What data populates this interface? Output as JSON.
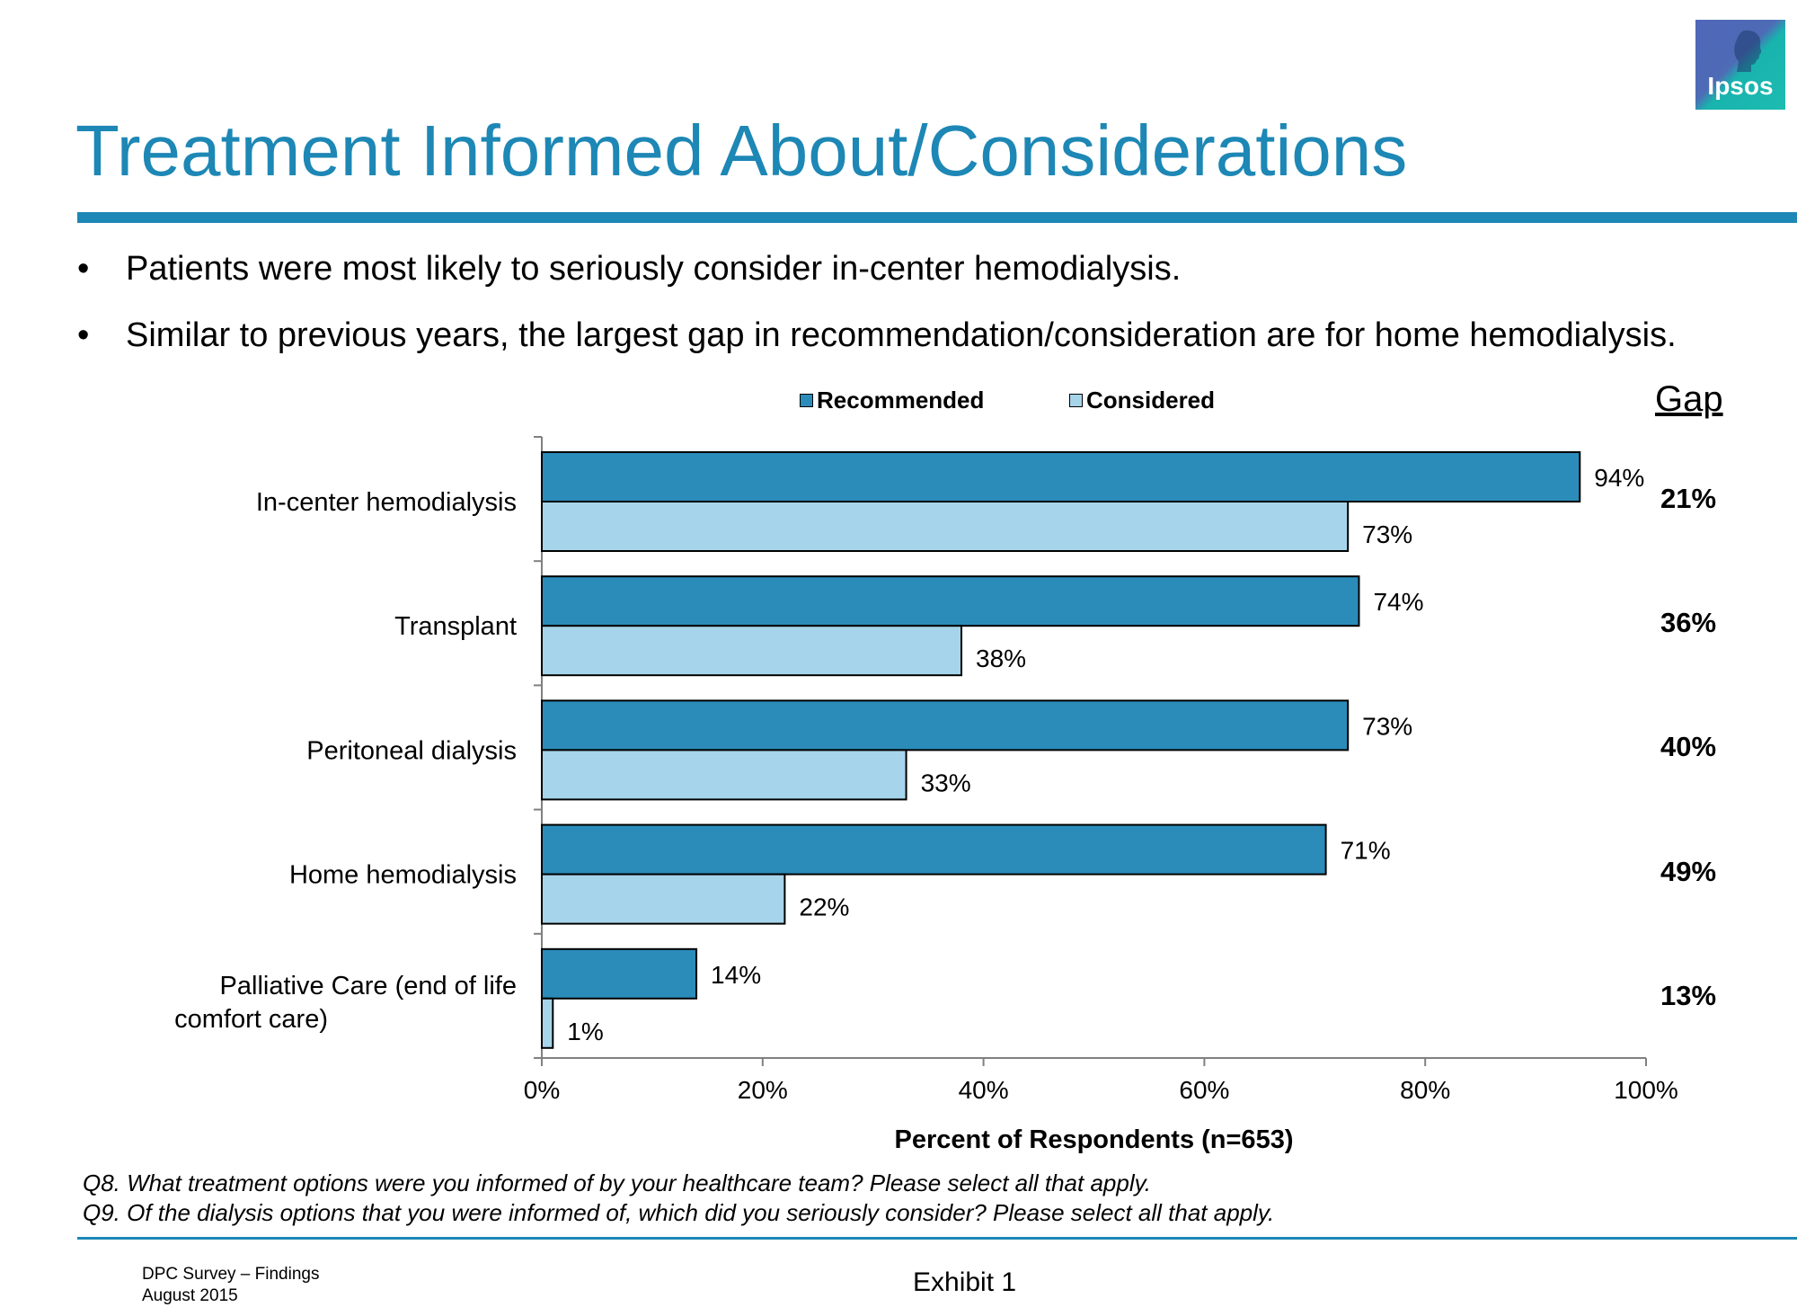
{
  "slide": {
    "title": "Treatment Informed About/Considerations",
    "bullets": [
      "Patients were most likely to seriously consider in-center hemodialysis.",
      "Similar to previous years, the largest gap in recommendation/consideration are for home hemodialysis."
    ],
    "bullet_symbol": "•",
    "logo_text": "Ipsos",
    "gap_title": "Gap",
    "footnotes": [
      "Q8. What treatment options were you informed of by your healthcare team? Please select all that apply.",
      "Q9. Of the dialysis options that you were informed of, which did you seriously consider?  Please select all that apply."
    ],
    "footer_left": [
      "DPC Survey – Findings",
      "August 2015"
    ],
    "footer_center": "Exhibit 1"
  },
  "colors": {
    "accent": "#1d87b5",
    "recommended": "#2b8cba",
    "considered": "#a6d4ea"
  },
  "chart_data": {
    "type": "bar",
    "orientation": "horizontal",
    "categories": [
      "In-center hemodialysis",
      "Transplant",
      "Peritoneal dialysis",
      "Home hemodialysis",
      "Palliative Care (end of life comfort care)"
    ],
    "series": [
      {
        "name": "Recommended",
        "values": [
          94,
          74,
          73,
          71,
          14
        ]
      },
      {
        "name": "Considered",
        "values": [
          73,
          38,
          33,
          22,
          1
        ]
      }
    ],
    "data_labels": {
      "Recommended": [
        "94%",
        "74%",
        "73%",
        "71%",
        "14%"
      ],
      "Considered": [
        "73%",
        "38%",
        "33%",
        "22%",
        "1%"
      ]
    },
    "gap": [
      "21%",
      "36%",
      "40%",
      "49%",
      "13%"
    ],
    "xlabel": "Percent of Respondents (n=653)",
    "xlim": [
      0,
      100
    ],
    "xticks": [
      "0%",
      "20%",
      "40%",
      "60%",
      "80%",
      "100%"
    ],
    "legend": {
      "position": "top",
      "entries": [
        "Recommended",
        "Considered"
      ]
    },
    "grid": false
  }
}
